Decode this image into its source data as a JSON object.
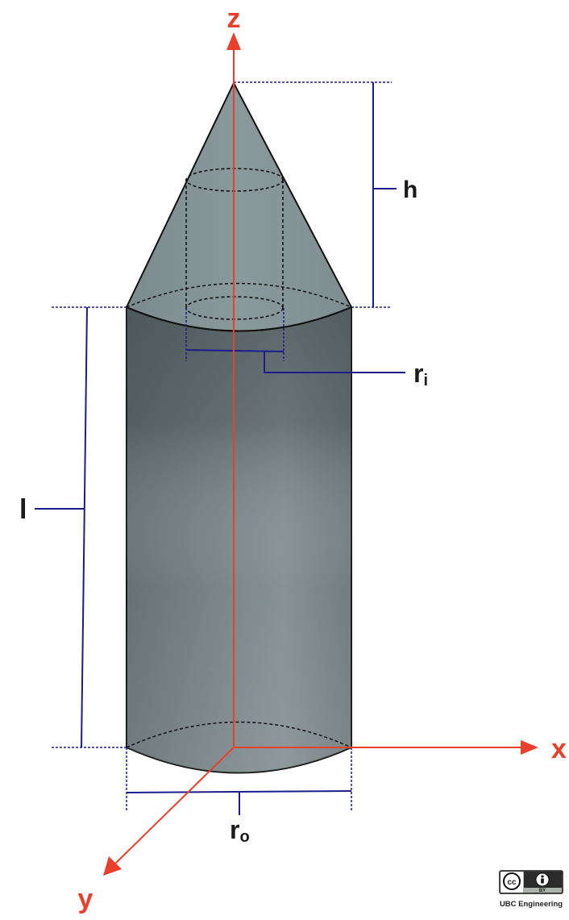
{
  "axes": {
    "z": "z",
    "x": "x",
    "y": "y",
    "color": "#e8402a"
  },
  "dimensions": {
    "h": "h",
    "l": "l",
    "ri": {
      "base": "r",
      "sub": "i"
    },
    "ro": {
      "base": "r",
      "sub": "o"
    },
    "color": "#1c1c8c"
  },
  "solid": {
    "body_color": "#6f7d80",
    "body_dark": "#4c5659",
    "cone_color": "#7f8f92",
    "outline": "#111111"
  },
  "license": {
    "cc": "cc",
    "by": "BY",
    "org": "UBC Engineering"
  }
}
